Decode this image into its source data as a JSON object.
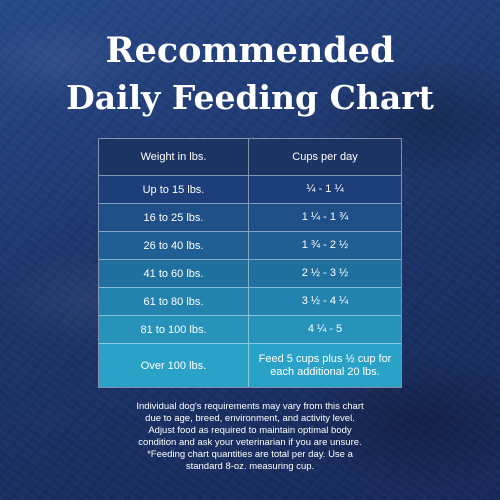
{
  "title": {
    "line1": "Recommended",
    "line2": "Daily Feeding Chart"
  },
  "chart_data": {
    "type": "table",
    "columns": [
      "Weight in lbs.",
      "Cups per day"
    ],
    "rows": [
      [
        "Up to 15 lbs.",
        "¼ - 1 ¼"
      ],
      [
        "16 to 25 lbs.",
        "1 ¼  - 1 ¾"
      ],
      [
        "26 to 40 lbs.",
        "1 ¾  - 2 ½"
      ],
      [
        "41 to 60 lbs.",
        "2 ½  - 3 ½"
      ],
      [
        "61 to 80 lbs.",
        "3 ½  - 4 ¼"
      ],
      [
        "81 to 100 lbs.",
        "4 ¼  - 5"
      ],
      [
        "Over 100 lbs.",
        "Feed 5 cups plus ½ cup for each additional 20 lbs."
      ]
    ],
    "row_colors": [
      "#1d3e78",
      "#1e4f86",
      "#1f5f93",
      "#1f6f9f",
      "#2382ae",
      "#2792ba",
      "#2aa1c6"
    ]
  },
  "footnotes": {
    "note1_lines": [
      "Individual dog's requirements may vary from this chart",
      "due to age, breed, environment, and activity level.",
      "Adjust food as required to maintain optimal body",
      "condition and ask your veterinarian if you are unsure."
    ],
    "note2_lines": [
      "*Feeding chart quantities are total per day. Use a",
      "standard 8-oz. measuring cup."
    ]
  }
}
